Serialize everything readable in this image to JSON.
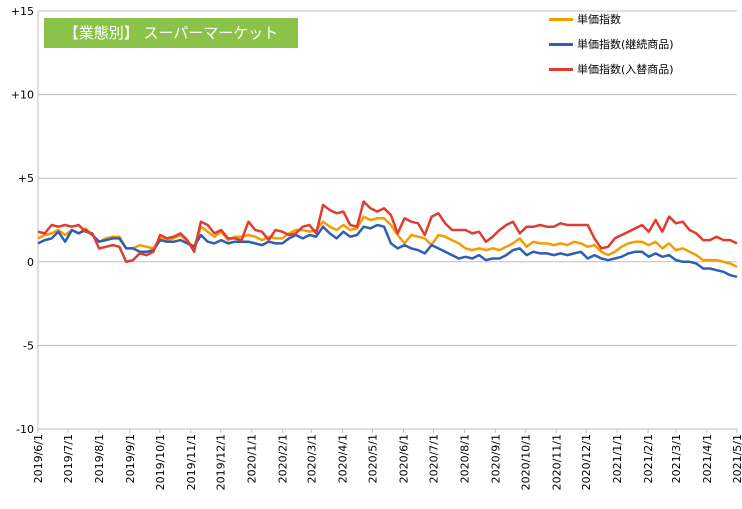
{
  "title": "【業態別】 スーパーマーケット",
  "legend": [
    {
      "label": "単価指数",
      "color": "#f59c00"
    },
    {
      "label": "単価指数(継続商品)",
      "color": "#2e5fb3"
    },
    {
      "label": "単価指数(入替商品)",
      "color": "#e03c31"
    }
  ],
  "chart_data": {
    "type": "line",
    "ylim": [
      -10,
      15
    ],
    "yticks": [
      15,
      10,
      5,
      0,
      -5,
      -10
    ],
    "ytick_labels": [
      "+15",
      "+10",
      "+5",
      "0",
      "-5",
      "-10"
    ],
    "x_start": "2019/6/1",
    "x_end": "2021/5/1",
    "x_ticks": [
      "2019/6/1",
      "2019/7/1",
      "2019/8/1",
      "2019/9/1",
      "2019/10/1",
      "2019/11/1",
      "2019/12/1",
      "2020/1/1",
      "2020/2/1",
      "2020/3/1",
      "2020/4/1",
      "2020/5/1",
      "2020/6/1",
      "2020/7/1",
      "2020/8/1",
      "2020/9/1",
      "2020/10/1",
      "2020/11/1",
      "2020/12/1",
      "2021/1/1",
      "2021/2/1",
      "2021/3/1",
      "2021/4/1",
      "2021/5/1"
    ],
    "grid": "horizontal",
    "legend_position": "top-right",
    "series": [
      {
        "name": "単価指数",
        "color": "#f59c00",
        "values": [
          1.4,
          1.6,
          1.7,
          1.9,
          1.6,
          1.9,
          1.7,
          2.0,
          1.6,
          1.2,
          1.4,
          1.5,
          1.5,
          0.8,
          0.8,
          1.0,
          0.9,
          0.8,
          1.4,
          1.3,
          1.4,
          1.6,
          1.2,
          0.9,
          2.1,
          1.8,
          1.5,
          1.8,
          1.3,
          1.5,
          1.5,
          1.6,
          1.5,
          1.3,
          1.5,
          1.4,
          1.4,
          1.7,
          1.9,
          1.9,
          1.8,
          1.9,
          2.4,
          2.1,
          1.9,
          2.2,
          1.9,
          2.0,
          2.7,
          2.5,
          2.6,
          2.6,
          2.2,
          1.6,
          1.1,
          1.6,
          1.5,
          1.4,
          1.0,
          1.6,
          1.5,
          1.3,
          1.1,
          0.8,
          0.7,
          0.8,
          0.7,
          0.8,
          0.7,
          0.9,
          1.1,
          1.4,
          0.9,
          1.2,
          1.1,
          1.1,
          1.0,
          1.1,
          1.0,
          1.2,
          1.1,
          0.9,
          1.0,
          0.6,
          0.4,
          0.6,
          0.9,
          1.1,
          1.2,
          1.2,
          1.0,
          1.2,
          0.8,
          1.1,
          0.7,
          0.8,
          0.6,
          0.4,
          0.1,
          0.1,
          0.1,
          0.0,
          -0.1,
          -0.3
        ]
      },
      {
        "name": "単価指数(継続商品)",
        "color": "#2e5fb3",
        "values": [
          1.1,
          1.3,
          1.4,
          1.8,
          1.2,
          1.9,
          1.7,
          1.9,
          1.6,
          1.2,
          1.3,
          1.4,
          1.4,
          0.8,
          0.8,
          0.6,
          0.6,
          0.7,
          1.3,
          1.2,
          1.2,
          1.3,
          1.1,
          0.9,
          1.6,
          1.2,
          1.1,
          1.3,
          1.1,
          1.2,
          1.2,
          1.2,
          1.1,
          1.0,
          1.2,
          1.1,
          1.1,
          1.4,
          1.6,
          1.4,
          1.6,
          1.5,
          2.1,
          1.7,
          1.4,
          1.8,
          1.5,
          1.6,
          2.1,
          2.0,
          2.2,
          2.1,
          1.1,
          0.8,
          1.0,
          0.8,
          0.7,
          0.5,
          1.0,
          0.8,
          0.6,
          0.4,
          0.2,
          0.3,
          0.2,
          0.4,
          0.1,
          0.2,
          0.2,
          0.4,
          0.7,
          0.8,
          0.4,
          0.6,
          0.5,
          0.5,
          0.4,
          0.5,
          0.4,
          0.5,
          0.6,
          0.2,
          0.4,
          0.2,
          0.1,
          0.2,
          0.3,
          0.5,
          0.6,
          0.6,
          0.3,
          0.5,
          0.3,
          0.4,
          0.1,
          0.0,
          0.0,
          -0.1,
          -0.4,
          -0.4,
          -0.5,
          -0.6,
          -0.8,
          -0.9
        ]
      },
      {
        "name": "単価指数(入替商品)",
        "color": "#e03c31",
        "values": [
          1.8,
          1.7,
          2.2,
          2.1,
          2.2,
          2.1,
          2.2,
          1.8,
          1.7,
          0.8,
          0.9,
          1.0,
          0.9,
          0.0,
          0.1,
          0.5,
          0.4,
          0.6,
          1.6,
          1.4,
          1.5,
          1.7,
          1.3,
          0.6,
          2.4,
          2.2,
          1.7,
          1.9,
          1.4,
          1.4,
          1.3,
          2.4,
          1.9,
          1.8,
          1.3,
          1.9,
          1.8,
          1.6,
          1.7,
          2.1,
          2.2,
          1.7,
          3.4,
          3.1,
          2.9,
          3.0,
          2.2,
          2.1,
          3.6,
          3.2,
          3.0,
          3.2,
          2.8,
          1.7,
          2.6,
          2.4,
          2.3,
          1.6,
          2.7,
          2.9,
          2.3,
          1.9,
          1.9,
          1.9,
          1.7,
          1.8,
          1.2,
          1.5,
          1.9,
          2.2,
          2.4,
          1.7,
          2.1,
          2.1,
          2.2,
          2.1,
          2.1,
          2.3,
          2.2,
          2.2,
          2.2,
          2.2,
          1.4,
          0.8,
          0.9,
          1.4,
          1.6,
          1.8,
          2.0,
          2.2,
          1.8,
          2.5,
          1.8,
          2.7,
          2.3,
          2.4,
          1.9,
          1.7,
          1.3,
          1.3,
          1.5,
          1.3,
          1.3,
          1.1
        ]
      }
    ]
  }
}
